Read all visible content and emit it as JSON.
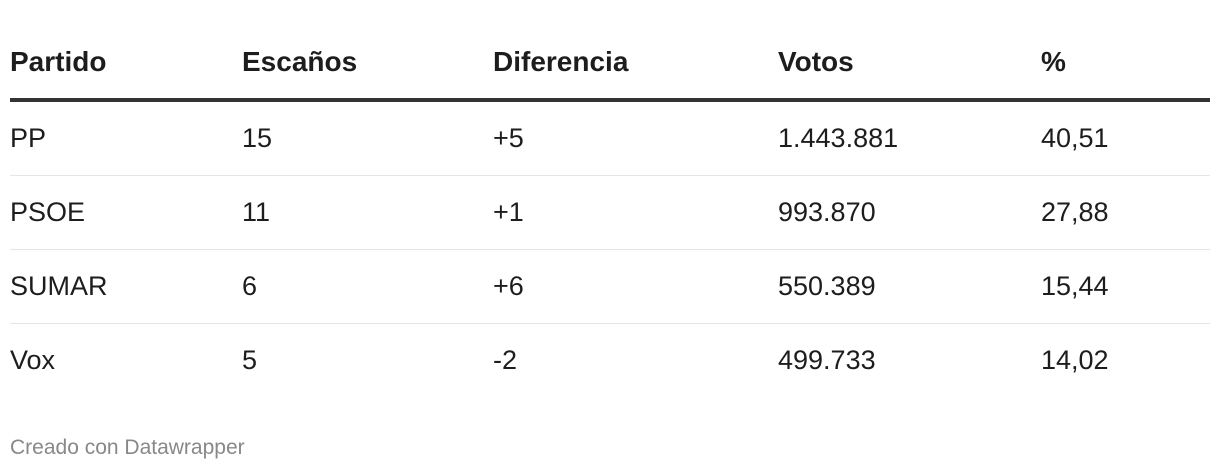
{
  "table": {
    "header": [
      "Partido",
      "Escaños",
      "Diferencia",
      "Votos",
      "%"
    ],
    "rows": [
      [
        "PP",
        "15",
        "+5",
        "1.443.881",
        "40,51"
      ],
      [
        "PSOE",
        "11",
        "+1",
        "993.870",
        "27,88"
      ],
      [
        "SUMAR",
        "6",
        "+6",
        "550.389",
        "15,44"
      ],
      [
        "Vox",
        "5",
        "-2",
        "499.733",
        "14,02"
      ]
    ]
  },
  "footer": "Creado con Datawrapper"
}
